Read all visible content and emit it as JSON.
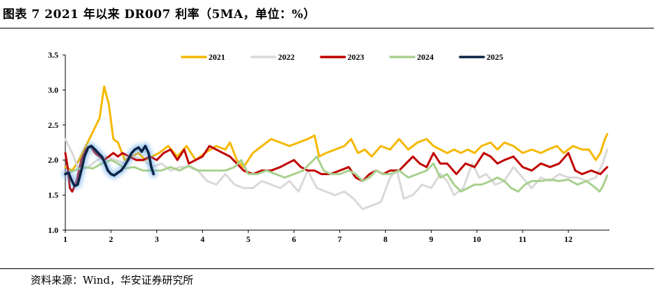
{
  "title": "图表 7 2021 年以来 DR007 利率（5MA，单位：%）",
  "source": "资料来源：Wind，华安证券研究所",
  "chart_data": {
    "type": "line",
    "x_ticks": [
      "1",
      "2",
      "3",
      "4",
      "5",
      "6",
      "7",
      "8",
      "9",
      "10",
      "11",
      "12"
    ],
    "xlim": [
      1,
      12.9
    ],
    "ylim": [
      1.0,
      3.5
    ],
    "y_ticks": [
      "1.0",
      "1.5",
      "2.0",
      "2.5",
      "3.0",
      "3.5"
    ],
    "legend": "top-center",
    "series": [
      {
        "name": "2021",
        "color": "#F5B800",
        "points": [
          [
            1.0,
            1.9
          ],
          [
            1.15,
            1.85
          ],
          [
            1.3,
            2.0
          ],
          [
            1.45,
            2.2
          ],
          [
            1.6,
            2.4
          ],
          [
            1.75,
            2.6
          ],
          [
            1.85,
            3.05
          ],
          [
            1.95,
            2.8
          ],
          [
            2.05,
            2.3
          ],
          [
            2.15,
            2.25
          ],
          [
            2.3,
            2.0
          ],
          [
            2.45,
            2.05
          ],
          [
            2.6,
            2.1
          ],
          [
            2.75,
            2.0
          ],
          [
            2.9,
            2.05
          ],
          [
            3.05,
            2.1
          ],
          [
            3.25,
            2.2
          ],
          [
            3.45,
            2.05
          ],
          [
            3.65,
            2.2
          ],
          [
            3.85,
            2.0
          ],
          [
            4.05,
            2.1
          ],
          [
            4.3,
            2.2
          ],
          [
            4.5,
            2.15
          ],
          [
            4.6,
            2.25
          ],
          [
            4.75,
            2.0
          ],
          [
            4.9,
            1.9
          ],
          [
            5.1,
            2.1
          ],
          [
            5.3,
            2.2
          ],
          [
            5.5,
            2.3
          ],
          [
            5.7,
            2.25
          ],
          [
            5.9,
            2.2
          ],
          [
            6.1,
            2.25
          ],
          [
            6.3,
            2.3
          ],
          [
            6.45,
            2.35
          ],
          [
            6.55,
            2.05
          ],
          [
            6.7,
            2.1
          ],
          [
            6.9,
            2.15
          ],
          [
            7.1,
            2.2
          ],
          [
            7.25,
            2.3
          ],
          [
            7.4,
            2.1
          ],
          [
            7.55,
            2.15
          ],
          [
            7.7,
            2.05
          ],
          [
            7.9,
            2.2
          ],
          [
            8.1,
            2.15
          ],
          [
            8.3,
            2.3
          ],
          [
            8.5,
            2.15
          ],
          [
            8.7,
            2.25
          ],
          [
            8.9,
            2.3
          ],
          [
            9.05,
            2.2
          ],
          [
            9.2,
            2.15
          ],
          [
            9.35,
            2.1
          ],
          [
            9.5,
            2.15
          ],
          [
            9.65,
            2.1
          ],
          [
            9.8,
            2.15
          ],
          [
            9.95,
            2.1
          ],
          [
            10.1,
            2.2
          ],
          [
            10.3,
            2.25
          ],
          [
            10.45,
            2.15
          ],
          [
            10.6,
            2.25
          ],
          [
            10.8,
            2.2
          ],
          [
            11.0,
            2.1
          ],
          [
            11.2,
            2.15
          ],
          [
            11.4,
            2.1
          ],
          [
            11.55,
            2.15
          ],
          [
            11.75,
            2.2
          ],
          [
            11.9,
            2.1
          ],
          [
            12.1,
            2.2
          ],
          [
            12.3,
            2.15
          ],
          [
            12.45,
            2.15
          ],
          [
            12.6,
            2.0
          ],
          [
            12.7,
            2.1
          ],
          [
            12.8,
            2.3
          ],
          [
            12.85,
            2.37
          ]
        ]
      },
      {
        "name": "2022",
        "color": "#D9D9D9",
        "points": [
          [
            1.0,
            2.3
          ],
          [
            1.15,
            2.1
          ],
          [
            1.3,
            1.85
          ],
          [
            1.5,
            1.9
          ],
          [
            1.7,
            2.0
          ],
          [
            1.9,
            2.05
          ],
          [
            2.1,
            2.0
          ],
          [
            2.3,
            1.95
          ],
          [
            2.5,
            2.05
          ],
          [
            2.7,
            2.0
          ],
          [
            2.9,
            1.9
          ],
          [
            3.1,
            1.95
          ],
          [
            3.3,
            1.85
          ],
          [
            3.5,
            1.9
          ],
          [
            3.7,
            1.9
          ],
          [
            3.9,
            1.85
          ],
          [
            4.1,
            1.7
          ],
          [
            4.3,
            1.65
          ],
          [
            4.5,
            1.8
          ],
          [
            4.7,
            1.65
          ],
          [
            4.9,
            1.6
          ],
          [
            5.1,
            1.6
          ],
          [
            5.3,
            1.7
          ],
          [
            5.5,
            1.65
          ],
          [
            5.7,
            1.6
          ],
          [
            5.9,
            1.7
          ],
          [
            6.1,
            1.55
          ],
          [
            6.3,
            1.85
          ],
          [
            6.5,
            1.6
          ],
          [
            6.7,
            1.55
          ],
          [
            6.9,
            1.5
          ],
          [
            7.1,
            1.55
          ],
          [
            7.3,
            1.45
          ],
          [
            7.5,
            1.3
          ],
          [
            7.7,
            1.35
          ],
          [
            7.9,
            1.4
          ],
          [
            8.1,
            1.75
          ],
          [
            8.25,
            1.85
          ],
          [
            8.4,
            1.45
          ],
          [
            8.6,
            1.5
          ],
          [
            8.8,
            1.65
          ],
          [
            9.0,
            1.6
          ],
          [
            9.2,
            1.8
          ],
          [
            9.35,
            1.7
          ],
          [
            9.5,
            1.5
          ],
          [
            9.7,
            1.6
          ],
          [
            9.9,
            1.95
          ],
          [
            10.05,
            1.75
          ],
          [
            10.2,
            1.8
          ],
          [
            10.4,
            1.65
          ],
          [
            10.6,
            1.7
          ],
          [
            10.8,
            1.9
          ],
          [
            11.0,
            1.75
          ],
          [
            11.2,
            1.6
          ],
          [
            11.4,
            1.75
          ],
          [
            11.6,
            1.7
          ],
          [
            11.8,
            1.8
          ],
          [
            12.0,
            1.75
          ],
          [
            12.2,
            1.75
          ],
          [
            12.4,
            1.7
          ],
          [
            12.6,
            1.75
          ],
          [
            12.75,
            1.95
          ],
          [
            12.85,
            2.15
          ]
        ]
      },
      {
        "name": "2023",
        "color": "#C00000",
        "points": [
          [
            1.0,
            2.1
          ],
          [
            1.05,
            1.9
          ],
          [
            1.1,
            1.6
          ],
          [
            1.15,
            1.55
          ],
          [
            1.25,
            1.7
          ],
          [
            1.35,
            2.0
          ],
          [
            1.45,
            2.15
          ],
          [
            1.55,
            2.2
          ],
          [
            1.65,
            2.1
          ],
          [
            1.75,
            2.05
          ],
          [
            1.85,
            2.0
          ],
          [
            1.95,
            2.05
          ],
          [
            2.05,
            2.1
          ],
          [
            2.15,
            2.05
          ],
          [
            2.25,
            2.1
          ],
          [
            2.4,
            2.05
          ],
          [
            2.55,
            2.0
          ],
          [
            2.7,
            2.0
          ],
          [
            2.85,
            2.05
          ],
          [
            3.0,
            2.0
          ],
          [
            3.15,
            2.1
          ],
          [
            3.3,
            2.15
          ],
          [
            3.45,
            2.0
          ],
          [
            3.6,
            2.15
          ],
          [
            3.7,
            1.95
          ],
          [
            3.85,
            2.0
          ],
          [
            4.0,
            2.05
          ],
          [
            4.15,
            2.2
          ],
          [
            4.3,
            2.15
          ],
          [
            4.45,
            2.1
          ],
          [
            4.6,
            2.05
          ],
          [
            4.75,
            1.95
          ],
          [
            4.9,
            1.85
          ],
          [
            5.1,
            1.8
          ],
          [
            5.3,
            1.85
          ],
          [
            5.5,
            1.85
          ],
          [
            5.7,
            1.9
          ],
          [
            5.85,
            1.95
          ],
          [
            6.0,
            2.0
          ],
          [
            6.15,
            1.9
          ],
          [
            6.3,
            1.85
          ],
          [
            6.45,
            1.85
          ],
          [
            6.6,
            1.8
          ],
          [
            6.8,
            1.8
          ],
          [
            7.0,
            1.85
          ],
          [
            7.2,
            1.9
          ],
          [
            7.35,
            1.75
          ],
          [
            7.5,
            1.7
          ],
          [
            7.65,
            1.8
          ],
          [
            7.8,
            1.85
          ],
          [
            7.95,
            1.8
          ],
          [
            8.1,
            1.85
          ],
          [
            8.3,
            1.85
          ],
          [
            8.45,
            1.95
          ],
          [
            8.6,
            2.05
          ],
          [
            8.75,
            1.95
          ],
          [
            8.9,
            1.9
          ],
          [
            9.05,
            2.1
          ],
          [
            9.2,
            1.95
          ],
          [
            9.35,
            1.95
          ],
          [
            9.55,
            1.8
          ],
          [
            9.75,
            1.95
          ],
          [
            9.95,
            1.9
          ],
          [
            10.15,
            2.1
          ],
          [
            10.3,
            2.05
          ],
          [
            10.45,
            1.95
          ],
          [
            10.6,
            2.0
          ],
          [
            10.8,
            2.05
          ],
          [
            11.0,
            1.9
          ],
          [
            11.2,
            1.85
          ],
          [
            11.4,
            1.95
          ],
          [
            11.6,
            1.9
          ],
          [
            11.8,
            1.95
          ],
          [
            12.0,
            2.1
          ],
          [
            12.15,
            1.85
          ],
          [
            12.3,
            1.8
          ],
          [
            12.5,
            1.85
          ],
          [
            12.7,
            1.8
          ],
          [
            12.85,
            1.9
          ]
        ]
      },
      {
        "name": "2024",
        "color": "#A9D18E",
        "points": [
          [
            1.0,
            1.8
          ],
          [
            1.2,
            1.85
          ],
          [
            1.4,
            1.9
          ],
          [
            1.6,
            1.88
          ],
          [
            1.8,
            1.95
          ],
          [
            2.0,
            2.0
          ],
          [
            2.15,
            1.95
          ],
          [
            2.3,
            1.88
          ],
          [
            2.5,
            1.9
          ],
          [
            2.7,
            1.85
          ],
          [
            2.9,
            1.85
          ],
          [
            3.1,
            1.85
          ],
          [
            3.3,
            1.9
          ],
          [
            3.5,
            1.85
          ],
          [
            3.7,
            1.92
          ],
          [
            3.9,
            1.85
          ],
          [
            4.1,
            1.85
          ],
          [
            4.3,
            1.85
          ],
          [
            4.5,
            1.85
          ],
          [
            4.7,
            1.9
          ],
          [
            4.85,
            2.0
          ],
          [
            5.0,
            1.8
          ],
          [
            5.2,
            1.8
          ],
          [
            5.4,
            1.85
          ],
          [
            5.6,
            1.8
          ],
          [
            5.8,
            1.75
          ],
          [
            6.0,
            1.8
          ],
          [
            6.2,
            1.85
          ],
          [
            6.35,
            1.95
          ],
          [
            6.5,
            2.05
          ],
          [
            6.65,
            1.85
          ],
          [
            6.8,
            1.8
          ],
          [
            7.0,
            1.8
          ],
          [
            7.2,
            1.85
          ],
          [
            7.35,
            1.8
          ],
          [
            7.5,
            1.7
          ],
          [
            7.65,
            1.75
          ],
          [
            7.8,
            1.85
          ],
          [
            7.95,
            1.8
          ],
          [
            8.1,
            1.8
          ],
          [
            8.3,
            1.85
          ],
          [
            8.5,
            1.75
          ],
          [
            8.7,
            1.8
          ],
          [
            8.9,
            1.85
          ],
          [
            9.05,
            1.95
          ],
          [
            9.2,
            1.75
          ],
          [
            9.35,
            1.8
          ],
          [
            9.5,
            1.65
          ],
          [
            9.65,
            1.55
          ],
          [
            9.8,
            1.6
          ],
          [
            9.95,
            1.65
          ],
          [
            10.1,
            1.65
          ],
          [
            10.3,
            1.7
          ],
          [
            10.45,
            1.75
          ],
          [
            10.6,
            1.7
          ],
          [
            10.75,
            1.6
          ],
          [
            10.9,
            1.55
          ],
          [
            11.05,
            1.65
          ],
          [
            11.2,
            1.7
          ],
          [
            11.4,
            1.7
          ],
          [
            11.6,
            1.72
          ],
          [
            11.8,
            1.7
          ],
          [
            12.0,
            1.72
          ],
          [
            12.2,
            1.65
          ],
          [
            12.4,
            1.7
          ],
          [
            12.5,
            1.65
          ],
          [
            12.6,
            1.6
          ],
          [
            12.68,
            1.55
          ],
          [
            12.75,
            1.62
          ],
          [
            12.85,
            1.78
          ]
        ]
      },
      {
        "name": "2025",
        "color": "#0B2345",
        "points": [
          [
            1.0,
            1.8
          ],
          [
            1.07,
            1.82
          ],
          [
            1.13,
            1.72
          ],
          [
            1.2,
            1.63
          ],
          [
            1.27,
            1.65
          ],
          [
            1.35,
            1.85
          ],
          [
            1.42,
            2.05
          ],
          [
            1.5,
            2.18
          ],
          [
            1.57,
            2.2
          ],
          [
            1.65,
            2.15
          ],
          [
            1.72,
            2.1
          ],
          [
            1.8,
            2.05
          ],
          [
            1.87,
            1.95
          ],
          [
            1.93,
            1.85
          ],
          [
            2.0,
            1.8
          ],
          [
            2.07,
            1.78
          ],
          [
            2.15,
            1.82
          ],
          [
            2.22,
            1.85
          ],
          [
            2.3,
            1.92
          ],
          [
            2.37,
            2.0
          ],
          [
            2.45,
            2.1
          ],
          [
            2.52,
            2.15
          ],
          [
            2.6,
            2.18
          ],
          [
            2.67,
            2.12
          ],
          [
            2.75,
            2.2
          ],
          [
            2.82,
            2.1
          ],
          [
            2.88,
            1.9
          ],
          [
            2.93,
            1.8
          ]
        ]
      }
    ]
  }
}
